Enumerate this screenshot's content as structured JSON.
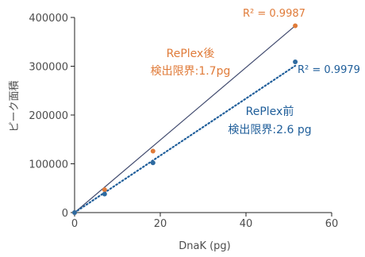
{
  "chart_data": {
    "type": "scatter",
    "xlabel": "DnaK (pg)",
    "ylabel": "ピーク面積",
    "xlim": [
      0,
      60
    ],
    "ylim": [
      0,
      400000
    ],
    "xticks": [
      "0",
      "20",
      "40",
      "60"
    ],
    "yticks": [
      "0",
      "100000",
      "200000",
      "300000",
      "400000"
    ],
    "series": [
      {
        "name": "RePlex後",
        "color": "#e07b39",
        "points": [
          [
            0,
            0
          ],
          [
            7,
            47000
          ],
          [
            18.3,
            126000
          ],
          [
            51.5,
            383000
          ]
        ],
        "fit_line": [
          [
            0,
            0
          ],
          [
            51.5,
            383000
          ]
        ],
        "fit_style": "solid",
        "fit_color": "#404a6e",
        "r2_label": "R² = 0.9987",
        "annotation_line1": "RePlex後",
        "annotation_line2": "検出限界:1.7pg"
      },
      {
        "name": "RePlex前",
        "color": "#2d6aa0",
        "points": [
          [
            0,
            0
          ],
          [
            7,
            38000
          ],
          [
            18.3,
            102000
          ],
          [
            51.5,
            309000
          ]
        ],
        "fit_line": [
          [
            0,
            0
          ],
          [
            51.5,
            301000
          ]
        ],
        "fit_style": "dotted",
        "fit_color": "#1f5e9a",
        "r2_label": "R² = 0.9979",
        "annotation_line1": "RePlex前",
        "annotation_line2": "検出限界:2.6 pg"
      }
    ]
  }
}
